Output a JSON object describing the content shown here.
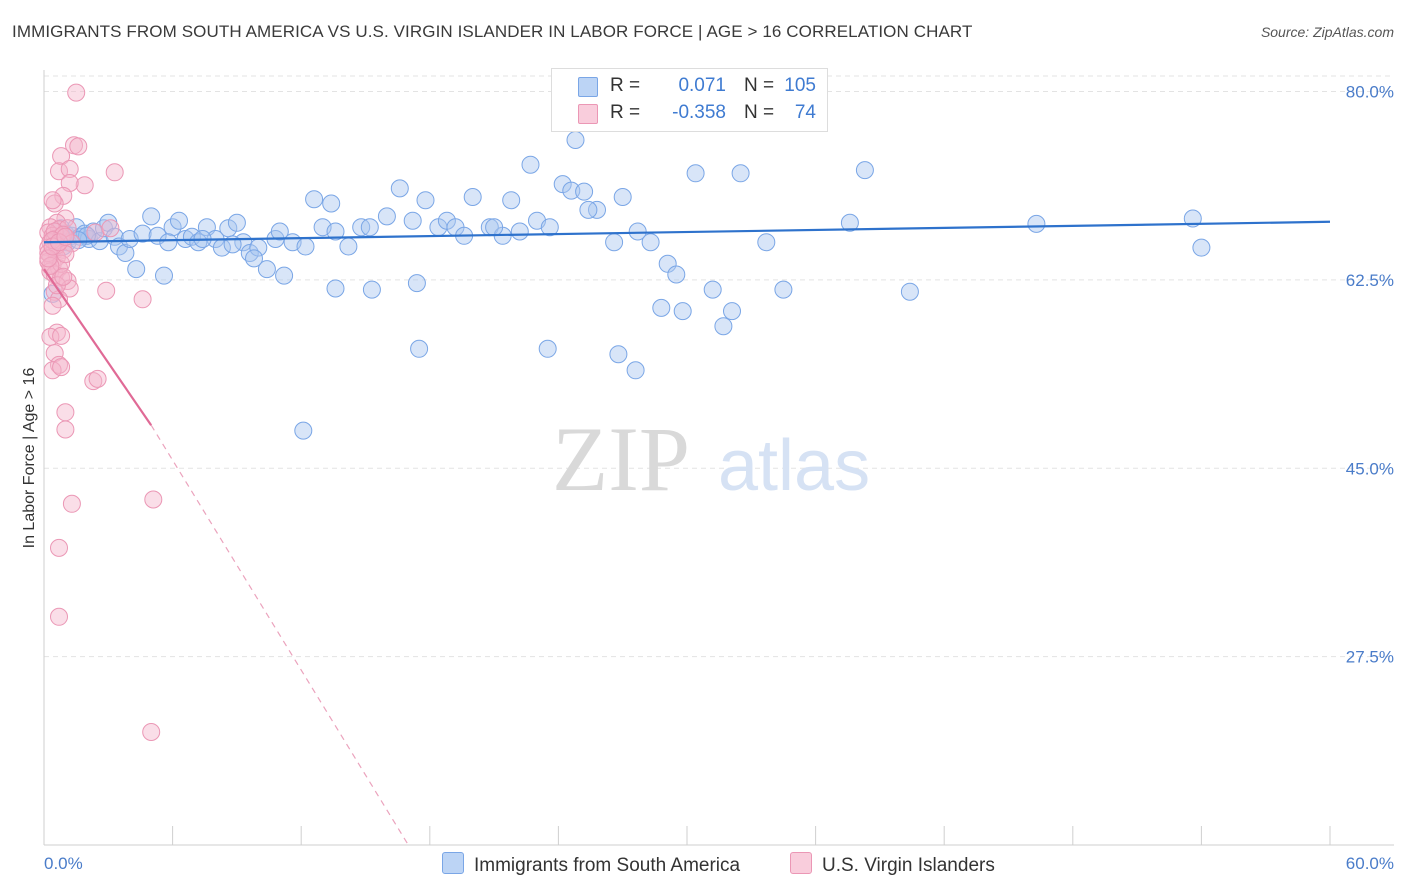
{
  "title": "IMMIGRANTS FROM SOUTH AMERICA VS U.S. VIRGIN ISLANDER IN LABOR FORCE | AGE > 16 CORRELATION CHART",
  "source": "Source: ZipAtlas.com",
  "watermark": {
    "zip": "ZIP",
    "atlas": "atlas"
  },
  "legend": {
    "r_label": "R =",
    "n_label": "N =",
    "rows": [
      {
        "r": "0.071",
        "n": "105",
        "color": "#a9c6ef"
      },
      {
        "r": "-0.358",
        "n": "74",
        "color": "#f5b5cb"
      }
    ]
  },
  "bottom_legend": [
    "Immigrants from South America",
    "U.S. Virgin Islanders"
  ],
  "chart_data": {
    "type": "scatter",
    "xlabel": "",
    "ylabel": "In Labor Force | Age > 16",
    "xlim": [
      0,
      60
    ],
    "ylim": [
      10,
      82
    ],
    "x_tick_labels": [
      "0.0%",
      "60.0%"
    ],
    "y_ticks": [
      27.5,
      45.0,
      62.5,
      80.0
    ],
    "y_tick_labels": [
      "27.5%",
      "45.0%",
      "62.5%",
      "80.0%"
    ],
    "grid": true,
    "legend_position": "top-center",
    "series": [
      {
        "name": "Immigrants from South America",
        "color": "#6e9fe0",
        "trend": {
          "x0": 0,
          "y0": 66.0,
          "x1": 60,
          "y1": 67.9
        },
        "points": [
          [
            0.6,
            66.4
          ],
          [
            0.8,
            67.3
          ],
          [
            1.0,
            66.8
          ],
          [
            1.1,
            66.0
          ],
          [
            1.3,
            66.6
          ],
          [
            1.5,
            67.4
          ],
          [
            1.7,
            66.5
          ],
          [
            1.9,
            66.8
          ],
          [
            2.1,
            66.3
          ],
          [
            2.3,
            67.0
          ],
          [
            2.6,
            66.1
          ],
          [
            2.8,
            67.3
          ],
          [
            3.0,
            67.8
          ],
          [
            3.3,
            66.5
          ],
          [
            3.5,
            65.6
          ],
          [
            3.8,
            65.0
          ],
          [
            4.0,
            66.3
          ],
          [
            4.3,
            63.5
          ],
          [
            4.6,
            66.8
          ],
          [
            5.0,
            68.4
          ],
          [
            5.3,
            66.6
          ],
          [
            5.6,
            62.9
          ],
          [
            6.0,
            67.4
          ],
          [
            6.3,
            68.0
          ],
          [
            6.6,
            66.3
          ],
          [
            6.9,
            66.5
          ],
          [
            7.2,
            66.0
          ],
          [
            7.6,
            67.4
          ],
          [
            8.0,
            66.3
          ],
          [
            8.3,
            65.5
          ],
          [
            8.6,
            67.3
          ],
          [
            9.0,
            67.8
          ],
          [
            9.3,
            66.0
          ],
          [
            9.6,
            65.0
          ],
          [
            10.0,
            65.5
          ],
          [
            10.4,
            63.5
          ],
          [
            10.8,
            66.3
          ],
          [
            11.2,
            62.9
          ],
          [
            11.6,
            66.0
          ],
          [
            12.2,
            65.6
          ],
          [
            12.6,
            70.0
          ],
          [
            13.0,
            67.4
          ],
          [
            13.4,
            69.6
          ],
          [
            13.6,
            67.0
          ],
          [
            14.2,
            65.6
          ],
          [
            14.8,
            67.4
          ],
          [
            15.2,
            67.4
          ],
          [
            16.0,
            68.4
          ],
          [
            16.6,
            71.0
          ],
          [
            17.2,
            68.0
          ],
          [
            17.8,
            69.9
          ],
          [
            18.4,
            67.4
          ],
          [
            18.8,
            68.0
          ],
          [
            19.2,
            67.4
          ],
          [
            20.0,
            70.2
          ],
          [
            20.8,
            67.4
          ],
          [
            21.4,
            66.6
          ],
          [
            21.8,
            69.9
          ],
          [
            22.2,
            67.0
          ],
          [
            22.7,
            73.2
          ],
          [
            23.0,
            68.0
          ],
          [
            23.6,
            67.4
          ],
          [
            24.2,
            71.4
          ],
          [
            24.6,
            70.8
          ],
          [
            25.2,
            70.7
          ],
          [
            25.8,
            69.0
          ],
          [
            26.6,
            66.0
          ],
          [
            27.0,
            70.2
          ],
          [
            27.7,
            67.0
          ],
          [
            28.3,
            66.0
          ],
          [
            29.1,
            64.0
          ],
          [
            29.5,
            63.0
          ],
          [
            30.4,
            72.4
          ],
          [
            31.2,
            61.6
          ],
          [
            32.1,
            59.6
          ],
          [
            32.5,
            72.4
          ],
          [
            33.7,
            66.0
          ],
          [
            34.5,
            61.6
          ],
          [
            37.6,
            67.8
          ],
          [
            38.3,
            72.7
          ],
          [
            40.4,
            61.4
          ],
          [
            46.3,
            67.7
          ],
          [
            53.6,
            68.2
          ],
          [
            54.0,
            65.5
          ],
          [
            12.1,
            48.5
          ],
          [
            15.3,
            61.6
          ],
          [
            17.4,
            62.2
          ],
          [
            17.5,
            56.1
          ],
          [
            23.5,
            56.1
          ],
          [
            24.8,
            75.5
          ],
          [
            26.8,
            55.6
          ],
          [
            27.6,
            54.1
          ],
          [
            28.8,
            59.9
          ],
          [
            29.8,
            59.6
          ],
          [
            31.7,
            58.2
          ],
          [
            13.6,
            61.7
          ],
          [
            21.0,
            67.4
          ],
          [
            8.8,
            65.8
          ],
          [
            5.8,
            66.0
          ],
          [
            2.0,
            66.6
          ],
          [
            0.4,
            61.2
          ],
          [
            1.6,
            66.2
          ],
          [
            7.4,
            66.3
          ],
          [
            9.8,
            64.5
          ],
          [
            11.0,
            67.0
          ],
          [
            19.6,
            66.6
          ],
          [
            25.4,
            69.0
          ],
          [
            0.9,
            65.6
          ]
        ]
      },
      {
        "name": "U.S. Virgin Islanders",
        "color": "#e98aac",
        "trend": {
          "x0": 0,
          "y0": 63.5,
          "x1": 5.0,
          "y1": 49.0,
          "dash_x1": 17.0,
          "dash_y1": 10.0
        },
        "points": [
          [
            1.5,
            79.9
          ],
          [
            1.4,
            75.0
          ],
          [
            1.6,
            74.9
          ],
          [
            0.8,
            74.0
          ],
          [
            0.7,
            72.6
          ],
          [
            1.2,
            72.8
          ],
          [
            3.3,
            72.5
          ],
          [
            1.9,
            71.3
          ],
          [
            1.2,
            71.5
          ],
          [
            0.9,
            70.3
          ],
          [
            0.5,
            69.6
          ],
          [
            0.4,
            69.9
          ],
          [
            1.0,
            68.2
          ],
          [
            0.6,
            67.8
          ],
          [
            0.3,
            67.4
          ],
          [
            0.7,
            67.2
          ],
          [
            1.1,
            67.3
          ],
          [
            0.2,
            66.9
          ],
          [
            0.4,
            66.6
          ],
          [
            0.5,
            66.3
          ],
          [
            0.8,
            66.5
          ],
          [
            0.3,
            66.0
          ],
          [
            0.6,
            65.8
          ],
          [
            0.2,
            65.5
          ],
          [
            0.5,
            65.2
          ],
          [
            0.9,
            65.3
          ],
          [
            0.3,
            64.8
          ],
          [
            0.6,
            64.6
          ],
          [
            0.2,
            64.2
          ],
          [
            0.4,
            63.9
          ],
          [
            0.7,
            63.6
          ],
          [
            0.3,
            63.3
          ],
          [
            0.5,
            63.0
          ],
          [
            0.8,
            62.7
          ],
          [
            1.1,
            62.4
          ],
          [
            1.2,
            61.7
          ],
          [
            0.5,
            61.4
          ],
          [
            0.7,
            60.7
          ],
          [
            0.4,
            60.1
          ],
          [
            2.9,
            61.5
          ],
          [
            4.6,
            60.7
          ],
          [
            0.6,
            57.6
          ],
          [
            0.3,
            57.2
          ],
          [
            0.8,
            57.3
          ],
          [
            0.5,
            55.7
          ],
          [
            0.7,
            54.6
          ],
          [
            0.4,
            54.1
          ],
          [
            0.8,
            54.4
          ],
          [
            2.3,
            53.1
          ],
          [
            2.5,
            53.3
          ],
          [
            1.0,
            50.2
          ],
          [
            1.0,
            48.6
          ],
          [
            1.3,
            41.7
          ],
          [
            5.1,
            42.1
          ],
          [
            0.7,
            37.6
          ],
          [
            0.7,
            31.2
          ],
          [
            5.0,
            20.5
          ],
          [
            0.5,
            67.0
          ],
          [
            0.9,
            66.7
          ],
          [
            0.2,
            65.0
          ],
          [
            0.6,
            65.7
          ],
          [
            1.3,
            65.9
          ],
          [
            0.4,
            66.2
          ],
          [
            0.8,
            64.0
          ],
          [
            1.0,
            64.9
          ],
          [
            0.3,
            63.8
          ],
          [
            0.6,
            62.0
          ],
          [
            0.9,
            62.8
          ],
          [
            2.4,
            66.9
          ],
          [
            3.1,
            67.3
          ],
          [
            0.2,
            64.5
          ],
          [
            0.4,
            65.6
          ],
          [
            0.7,
            66.0
          ],
          [
            1.0,
            66.5
          ]
        ]
      }
    ]
  }
}
